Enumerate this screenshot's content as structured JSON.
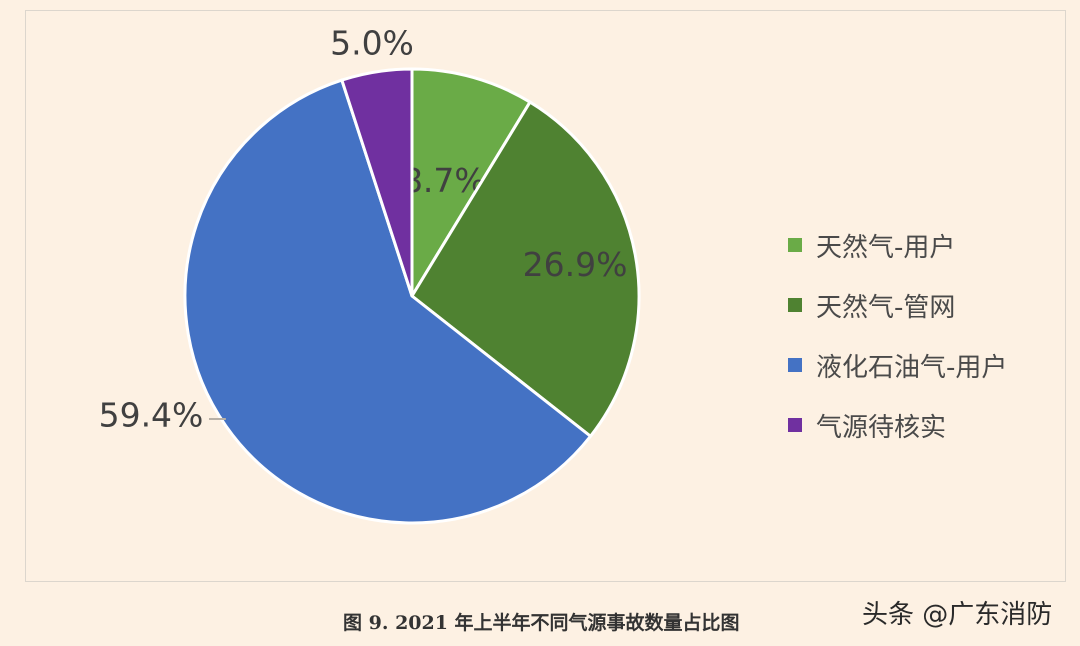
{
  "chart_data": {
    "type": "pie",
    "categories": [
      "天然气-用户",
      "天然气-管网",
      "液化石油气-用户",
      "气源待核实"
    ],
    "values": [
      8.7,
      26.9,
      59.4,
      5.0
    ],
    "data_labels": [
      "8.7%",
      "26.9%",
      "59.4%",
      "5.0%"
    ],
    "colors": [
      "#6aab47",
      "#4f8231",
      "#4472c4",
      "#7030a0"
    ],
    "legend_position": "right",
    "start_angle": "top, clockwise"
  },
  "legend": {
    "items": [
      {
        "label": "天然气-用户",
        "color": "#6aab47"
      },
      {
        "label": "天然气-管网",
        "color": "#4f8231"
      },
      {
        "label": "液化石油气-用户",
        "color": "#4472c4"
      },
      {
        "label": "气源待核实",
        "color": "#7030a0"
      }
    ]
  },
  "caption": "图 9. 2021 年上半年不同气源事故数量占比图",
  "watermark": "头条 @广东消防"
}
